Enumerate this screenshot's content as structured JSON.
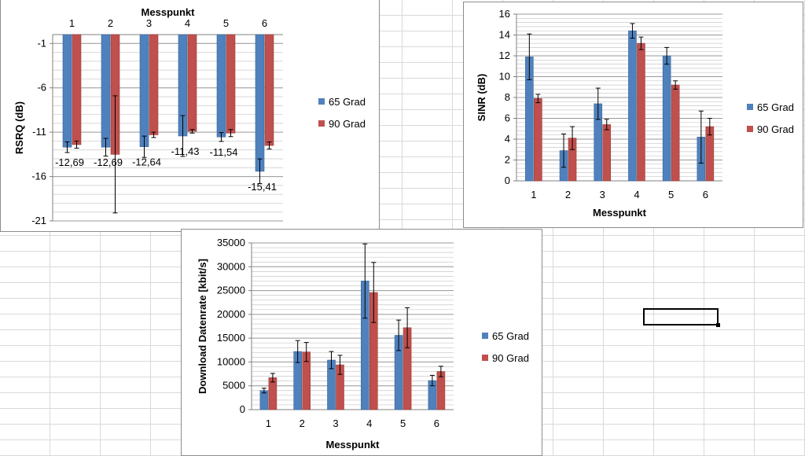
{
  "colors": {
    "s65": "#4f81bd",
    "s90": "#c0504d",
    "error_bar": "#000000",
    "grid": "#a6a6a6"
  },
  "chart_data": [
    {
      "id": "rsrq",
      "type": "bar",
      "title": "",
      "xlabel": "Messpunkt",
      "ylabel": "RSRQ (dB)",
      "x_axis_position": "top",
      "categories": [
        "1",
        "2",
        "3",
        "4",
        "5",
        "6"
      ],
      "ylim": [
        -21,
        0
      ],
      "yticks": [
        -1,
        -6,
        -11,
        -16,
        -21
      ],
      "minor_grid_step": 1,
      "legend_position": "right",
      "series": [
        {
          "name": "65 Grad",
          "values": [
            -12.69,
            -12.69,
            -12.64,
            -11.43,
            -11.54,
            -15.41
          ],
          "err": [
            0.6,
            1.0,
            1.2,
            2.3,
            0.5,
            1.4
          ]
        },
        {
          "name": "90 Grad",
          "values": [
            -12.4,
            -13.5,
            -11.3,
            -10.9,
            -11.1,
            -12.5
          ],
          "err": [
            0.4,
            6.6,
            0.3,
            0.2,
            0.4,
            0.4
          ]
        }
      ],
      "data_labels": [
        "-12,69",
        "-12,69",
        "-12,64",
        "-11,43",
        "-11,54",
        "-15,41"
      ]
    },
    {
      "id": "sinr",
      "type": "bar",
      "title": "",
      "xlabel": "Messpunkt",
      "ylabel": "SINR (dB)",
      "categories": [
        "1",
        "2",
        "3",
        "4",
        "5",
        "6"
      ],
      "ylim": [
        0,
        16
      ],
      "yticks": [
        0,
        2,
        4,
        6,
        8,
        10,
        12,
        14,
        16
      ],
      "minor_grid_step": 0.4,
      "legend_position": "right",
      "series": [
        {
          "name": "65 Grad",
          "values": [
            11.9,
            2.9,
            7.4,
            14.4,
            12.0,
            4.2
          ],
          "err": [
            2.2,
            1.6,
            1.5,
            0.7,
            0.8,
            2.5
          ]
        },
        {
          "name": "90 Grad",
          "values": [
            7.9,
            4.1,
            5.4,
            13.2,
            9.2,
            5.2
          ],
          "err": [
            0.4,
            1.1,
            0.5,
            0.6,
            0.4,
            0.8
          ]
        }
      ]
    },
    {
      "id": "download",
      "type": "bar",
      "title": "",
      "xlabel": "Messpunkt",
      "ylabel": "Download Datenrate [kbit/s]",
      "categories": [
        "1",
        "2",
        "3",
        "4",
        "5",
        "6"
      ],
      "ylim": [
        0,
        35000
      ],
      "yticks": [
        0,
        5000,
        10000,
        15000,
        20000,
        25000,
        30000,
        35000
      ],
      "minor_grid_step": 1000,
      "legend_position": "right",
      "series": [
        {
          "name": "65 Grad",
          "values": [
            4000,
            12200,
            10400,
            27000,
            15600,
            6100
          ],
          "err": [
            500,
            2300,
            1800,
            7800,
            3200,
            1100
          ]
        },
        {
          "name": "90 Grad",
          "values": [
            6700,
            12100,
            9400,
            24600,
            17200,
            8000
          ],
          "err": [
            900,
            2000,
            2000,
            6300,
            4200,
            1100
          ]
        }
      ]
    }
  ]
}
